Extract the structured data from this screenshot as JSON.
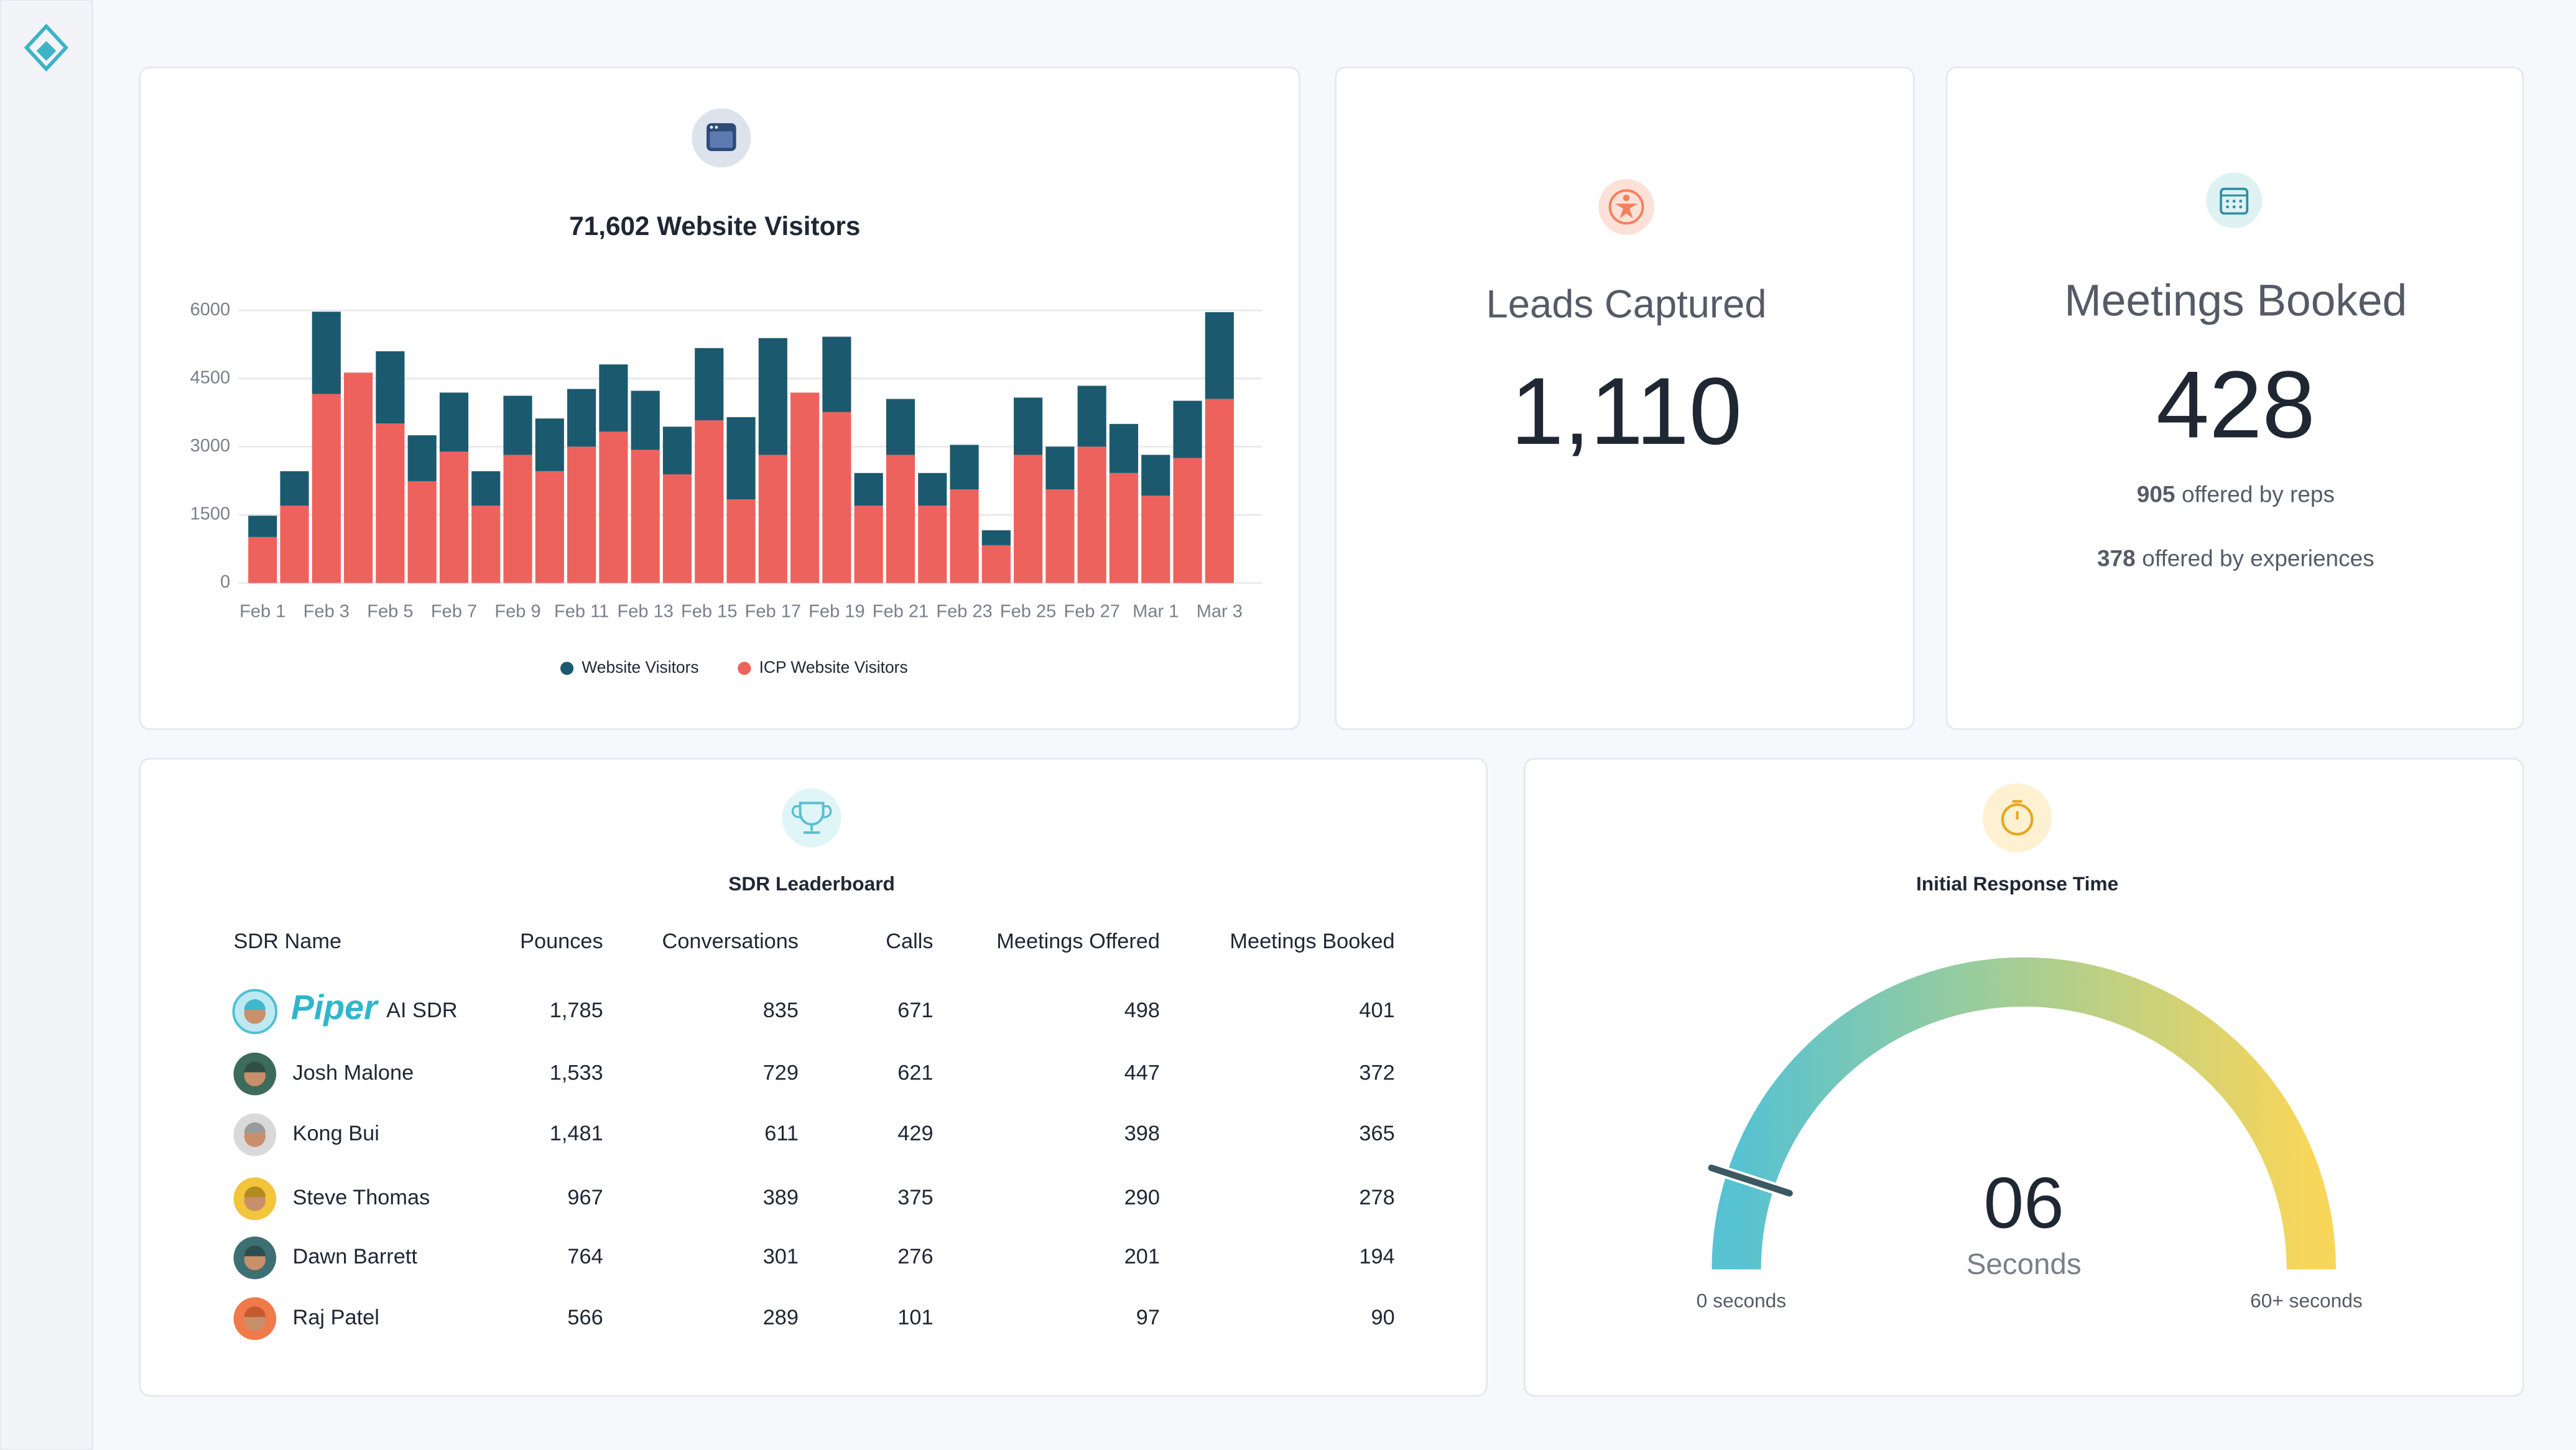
{
  "chart_data": {
    "type": "bar",
    "stacked": true,
    "title": "71,602 Website Visitors",
    "categories": [
      "Feb 1",
      null,
      "Feb 3",
      null,
      "Feb 5",
      null,
      "Feb 7",
      null,
      "Feb 9",
      null,
      "Feb 11",
      null,
      "Feb 13",
      null,
      "Feb 15",
      null,
      "Feb 17",
      null,
      "Feb 19",
      null,
      "Feb 21",
      null,
      "Feb 23",
      null,
      "Feb 25",
      null,
      "Feb 27",
      null,
      "Mar 1",
      null,
      "Mar 3"
    ],
    "series": [
      {
        "name": "Website Visitors",
        "color": "#1b5a6e",
        "values": [
          470,
          760,
          1810,
          0,
          1590,
          1010,
          1300,
          760,
          1300,
          1160,
          1270,
          1480,
          1300,
          1050,
          1590,
          1810,
          2570,
          0,
          1660,
          720,
          1230,
          720,
          980,
          330,
          1260,
          940,
          1340,
          1080,
          900,
          1260,
          1910
        ]
      },
      {
        "name": "ICP Website Visitors",
        "color": "#ee625d",
        "values": [
          1010,
          1700,
          4160,
          4630,
          3510,
          2240,
          2890,
          1700,
          2820,
          2460,
          3000,
          3330,
          2930,
          2390,
          3580,
          1840,
          2820,
          4190,
          3760,
          1700,
          2820,
          1700,
          2060,
          830,
          2820,
          2060,
          3000,
          2420,
          1920,
          2750,
          4050
        ]
      }
    ],
    "ylim": [
      0,
      6000
    ],
    "yticks": [
      0,
      1500,
      3000,
      4500,
      6000
    ],
    "grid": true,
    "legend": "bottom"
  },
  "leads": {
    "title": "Leads Captured",
    "value": "1,110"
  },
  "meetings": {
    "title": "Meetings Booked",
    "value": "428",
    "details": [
      {
        "value": "905",
        "text": "offered by reps"
      },
      {
        "value": "378",
        "text": "offered by experiences"
      }
    ]
  },
  "leaderboard": {
    "title": "SDR Leaderboard",
    "columns": [
      "SDR Name",
      "Pounces",
      "Conversations",
      "Calls",
      "Meetings Offered",
      "Meetings Booked"
    ],
    "rows": [
      {
        "name": "Piper",
        "tag": "AI SDR",
        "cells": [
          "1,785",
          "835",
          "671",
          "498",
          "401"
        ]
      },
      {
        "name": "Josh Malone",
        "cells": [
          "1,533",
          "729",
          "621",
          "447",
          "372"
        ]
      },
      {
        "name": "Kong Bui",
        "cells": [
          "1,481",
          "611",
          "429",
          "398",
          "365"
        ]
      },
      {
        "name": "Steve Thomas",
        "cells": [
          "967",
          "389",
          "375",
          "290",
          "278"
        ]
      },
      {
        "name": "Dawn Barrett",
        "cells": [
          "764",
          "301",
          "276",
          "201",
          "194"
        ]
      },
      {
        "name": "Raj Patel",
        "cells": [
          "566",
          "289",
          "101",
          "97",
          "90"
        ]
      }
    ]
  },
  "response_time": {
    "title": "Initial Response Time",
    "value": 6,
    "value_label": "06",
    "unit": "Seconds",
    "range": [
      0,
      60
    ],
    "range_labels": [
      "0 seconds",
      "60+ seconds"
    ]
  }
}
